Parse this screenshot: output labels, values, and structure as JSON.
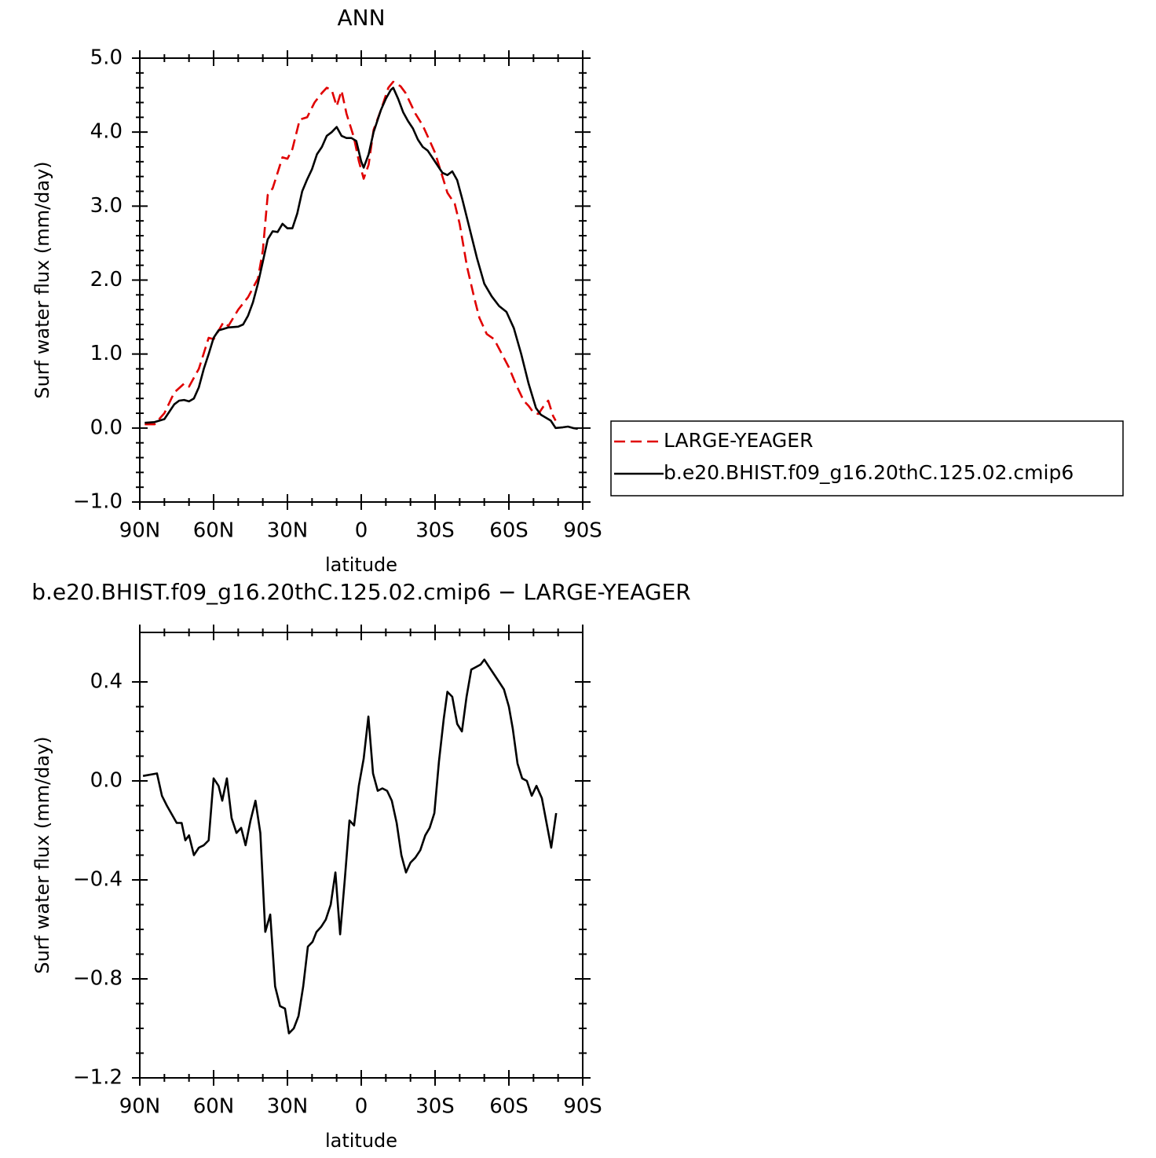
{
  "chart_data": [
    {
      "type": "line",
      "title": "ANN",
      "xlabel": "latitude",
      "ylabel": "Surf water flux (mm/day)",
      "xlim": [
        90,
        -90
      ],
      "xticks": [
        {
          "value": 90,
          "label": "90N"
        },
        {
          "value": 60,
          "label": "60N"
        },
        {
          "value": 30,
          "label": "30N"
        },
        0,
        {
          "value": -30,
          "label": "30S"
        },
        {
          "value": -60,
          "label": "60S"
        },
        {
          "value": -90,
          "label": "90S"
        }
      ],
      "ylim": [
        -1,
        5
      ],
      "yticks": [
        {
          "value": -1,
          "label": "−1.0"
        },
        {
          "value": 0,
          "label": "0.0"
        },
        {
          "value": 1,
          "label": "1.0"
        },
        {
          "value": 2,
          "label": "2.0"
        },
        {
          "value": 3,
          "label": "3.0"
        },
        {
          "value": 4,
          "label": "4.0"
        },
        {
          "value": 5,
          "label": "5.0"
        }
      ],
      "legend": "outside right",
      "series": [
        {
          "name": "LARGE-YEAGER",
          "color": "#e00000",
          "line_style": "dashed",
          "x": [
            88,
            84,
            80,
            76,
            72,
            70,
            66,
            62,
            60,
            56,
            54,
            50,
            46,
            42,
            40,
            38,
            36,
            32,
            30,
            28,
            25,
            22,
            19,
            16,
            14,
            12,
            10,
            8,
            6,
            3,
            1,
            -1,
            -3,
            -5,
            -8,
            -11,
            -13,
            -16,
            -18,
            -22,
            -25,
            -28,
            -30,
            -33,
            -35,
            -38,
            -40,
            -43,
            -46,
            -48,
            -51,
            -54,
            -57,
            -60,
            -63,
            -66,
            -68,
            -70,
            -72,
            -74,
            -76,
            -78,
            -79
          ],
          "values": [
            0.05,
            0.05,
            0.2,
            0.48,
            0.6,
            0.56,
            0.8,
            1.22,
            1.2,
            1.43,
            1.38,
            1.6,
            1.77,
            2.02,
            2.4,
            3.15,
            3.24,
            3.66,
            3.64,
            3.77,
            4.17,
            4.2,
            4.4,
            4.53,
            4.6,
            4.57,
            4.35,
            4.56,
            4.25,
            3.93,
            3.61,
            3.37,
            3.56,
            4.03,
            4.3,
            4.6,
            4.68,
            4.62,
            4.53,
            4.25,
            4.09,
            3.87,
            3.72,
            3.4,
            3.18,
            3.03,
            2.76,
            2.18,
            1.75,
            1.49,
            1.27,
            1.2,
            1.01,
            0.82,
            0.58,
            0.37,
            0.3,
            0.21,
            0.19,
            0.29,
            0.37,
            0.16,
            0.1
          ]
        },
        {
          "name": "b.e20.BHIST.f09_g16.20thC.125.02.cmip6",
          "color": "#000000",
          "line_style": "solid",
          "x": [
            88,
            84,
            80,
            78,
            76,
            74,
            72,
            70,
            68,
            66,
            64,
            62,
            60,
            58,
            56,
            54,
            50,
            48,
            46,
            44,
            42,
            40,
            38,
            36,
            34,
            32,
            30,
            28,
            26,
            24,
            22,
            20,
            18,
            16,
            14,
            12,
            10,
            8,
            6,
            4,
            2,
            0,
            -1,
            -3,
            -5,
            -8,
            -10,
            -12,
            -13,
            -15,
            -17,
            -19,
            -21,
            -23,
            -25,
            -27,
            -29,
            -31,
            -33,
            -35,
            -37,
            -39,
            -41,
            -44,
            -47,
            -50,
            -53,
            -56,
            -59,
            -62,
            -65,
            -68,
            -71,
            -73,
            -75,
            -77,
            -79,
            -82,
            -84,
            -86,
            -88
          ],
          "values": [
            0.07,
            0.08,
            0.12,
            0.22,
            0.32,
            0.37,
            0.38,
            0.36,
            0.4,
            0.55,
            0.8,
            1.0,
            1.22,
            1.32,
            1.34,
            1.36,
            1.37,
            1.4,
            1.52,
            1.7,
            1.95,
            2.25,
            2.55,
            2.66,
            2.65,
            2.76,
            2.7,
            2.7,
            2.9,
            3.2,
            3.36,
            3.5,
            3.7,
            3.8,
            3.95,
            4.0,
            4.07,
            3.95,
            3.92,
            3.92,
            3.88,
            3.6,
            3.52,
            3.7,
            4.0,
            4.3,
            4.45,
            4.57,
            4.6,
            4.45,
            4.27,
            4.15,
            4.05,
            3.9,
            3.8,
            3.75,
            3.65,
            3.55,
            3.45,
            3.42,
            3.47,
            3.35,
            3.1,
            2.7,
            2.3,
            1.95,
            1.78,
            1.65,
            1.57,
            1.35,
            1.0,
            0.6,
            0.27,
            0.18,
            0.14,
            0.1,
            0.0,
            0.01,
            0.02,
            0.0,
            -0.01
          ]
        }
      ]
    },
    {
      "type": "line",
      "title": "b.e20.BHIST.f09_g16.20thC.125.02.cmip6 − LARGE-YEAGER",
      "xlabel": "latitude",
      "ylabel": "Surf water flux (mm/day)",
      "xlim": [
        90,
        -90
      ],
      "xticks": [
        {
          "value": 90,
          "label": "90N"
        },
        {
          "value": 60,
          "label": "60N"
        },
        {
          "value": 30,
          "label": "30N"
        },
        0,
        {
          "value": -30,
          "label": "30S"
        },
        {
          "value": -60,
          "label": "60S"
        },
        {
          "value": -90,
          "label": "90S"
        }
      ],
      "ylim": [
        -1.2,
        0.6
      ],
      "yticks": [
        {
          "value": -1.2,
          "label": "−1.2"
        },
        {
          "value": -0.8,
          "label": "−0.8"
        },
        {
          "value": -0.4,
          "label": "−0.4"
        },
        {
          "value": 0,
          "label": "0.0"
        },
        {
          "value": 0.4,
          "label": "0.4"
        }
      ],
      "series": [
        {
          "color": "#000000",
          "line_style": "solid",
          "x": [
            88.7,
            83,
            81,
            79,
            75,
            73,
            71.5,
            70,
            68,
            66,
            64,
            62,
            60,
            58,
            56.5,
            54.6,
            52.7,
            50.7,
            48.8,
            47,
            45,
            43,
            41,
            39,
            37,
            35,
            33,
            31,
            29.4,
            27.4,
            25.5,
            23.6,
            21.7,
            19.8,
            18.2,
            16.3,
            14.4,
            12.4,
            10.5,
            8.6,
            6.7,
            4.8,
            2.9,
            1,
            -1,
            -2.9,
            -4.8,
            -6.7,
            -8.6,
            -10.5,
            -12.4,
            -14.4,
            -16.3,
            -18.2,
            -20,
            -22,
            -24,
            -26,
            -27.8,
            -29.7,
            -31.6,
            -33.5,
            -35,
            -37,
            -39,
            -40.9,
            -42.8,
            -44.7,
            -46.6,
            -48.5,
            -50,
            -52,
            -54,
            -56,
            -58,
            -60,
            -61.6,
            -63.5,
            -65.4,
            -67.3,
            -69.3,
            -71.2,
            -73.4,
            -77.2,
            -79.2
          ],
          "values": [
            0.02,
            0.03,
            -0.06,
            -0.1,
            -0.17,
            -0.17,
            -0.24,
            -0.22,
            -0.3,
            -0.27,
            -0.26,
            -0.24,
            0.01,
            -0.02,
            -0.08,
            0.01,
            -0.15,
            -0.21,
            -0.19,
            -0.26,
            -0.16,
            -0.08,
            -0.21,
            -0.61,
            -0.54,
            -0.83,
            -0.91,
            -0.92,
            -1.02,
            -1.0,
            -0.95,
            -0.83,
            -0.67,
            -0.65,
            -0.61,
            -0.59,
            -0.56,
            -0.5,
            -0.37,
            -0.62,
            -0.4,
            -0.16,
            -0.18,
            -0.02,
            0.09,
            0.26,
            0.03,
            -0.04,
            -0.03,
            -0.04,
            -0.08,
            -0.17,
            -0.3,
            -0.37,
            -0.33,
            -0.31,
            -0.28,
            -0.22,
            -0.19,
            -0.13,
            0.08,
            0.25,
            0.36,
            0.34,
            0.23,
            0.2,
            0.34,
            0.45,
            0.46,
            0.47,
            0.49,
            0.46,
            0.43,
            0.4,
            0.37,
            0.3,
            0.21,
            0.07,
            0.01,
            0.0,
            -0.06,
            -0.02,
            -0.07,
            -0.27,
            -0.13
          ]
        }
      ]
    }
  ]
}
